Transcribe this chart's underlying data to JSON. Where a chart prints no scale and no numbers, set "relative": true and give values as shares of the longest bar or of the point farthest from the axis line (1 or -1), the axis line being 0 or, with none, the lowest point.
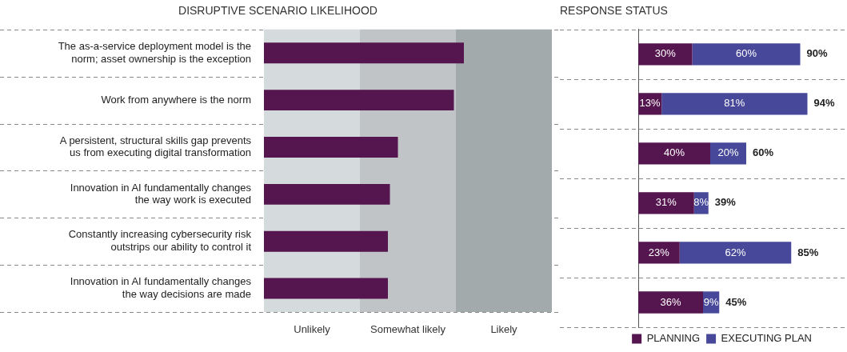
{
  "chart_data": [
    {
      "type": "bar",
      "orientation": "horizontal",
      "title": "DISRUPTIVE SCENARIO LIKELIHOOD",
      "categories": [
        "The as-a-service deployment model is the norm; asset ownership is the exception",
        "Work from anywhere is the norm",
        "A persistent, structural skills gap prevents us from executing digital transformation",
        "Innovation in AI fundamentally changes the way work is executed",
        "Constantly increasing cybersecurity risk outstrips our ability to control it",
        "Innovation in AI fundamentally changes the way decisions are made"
      ],
      "values": [
        1,
        0.95,
        0.67,
        0.63,
        0.62,
        0.62
      ],
      "color": "#55154f",
      "relative": true,
      "bands": [
        {
          "axis": "x",
          "from": 0,
          "to": 0.48,
          "label": "Unlikely",
          "color": "#d5dbdc"
        },
        {
          "axis": "x",
          "from": 0.48,
          "to": 0.96,
          "label": "Somewhat likely",
          "color": "#c0c4c6"
        },
        {
          "axis": "x",
          "from": 0.96,
          "to": 1.44,
          "label": "Likely",
          "color": "#a3aaac"
        }
      ],
      "grid": "y"
    },
    {
      "type": "bar",
      "orientation": "horizontal",
      "stacked": true,
      "title": "RESPONSE STATUS",
      "categories": [
        null,
        null,
        null,
        null,
        null,
        null
      ],
      "series": [
        {
          "name": "PLANNING",
          "color": "#55154f",
          "values": [
            30,
            13,
            40,
            31,
            23,
            36
          ],
          "value_labels": [
            "30%",
            "13%",
            "40%",
            "31%",
            "23%",
            "36%"
          ]
        },
        {
          "name": "EXECUTING PLAN",
          "color": "#474899",
          "values": [
            60,
            81,
            20,
            8,
            62,
            9
          ],
          "value_labels": [
            "60%",
            "81%",
            "20%",
            "8%",
            "62%",
            "9%"
          ]
        }
      ],
      "totals": [
        "90%",
        "94%",
        "60%",
        "39%",
        "85%",
        "45%"
      ],
      "grid": "y",
      "legend": "bottom right"
    }
  ]
}
